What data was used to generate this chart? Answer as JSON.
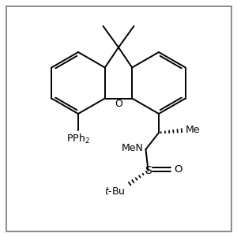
{
  "figure_width": 3.0,
  "figure_height": 3.0,
  "dpi": 100,
  "bg_color": "#ffffff",
  "bond_color": "#000000",
  "bond_lw": 1.4,
  "text_color": "#000000",
  "border_color": "#777777",
  "border_lw": 1.2,
  "xlim": [
    0,
    10
  ],
  "ylim": [
    0,
    10
  ]
}
